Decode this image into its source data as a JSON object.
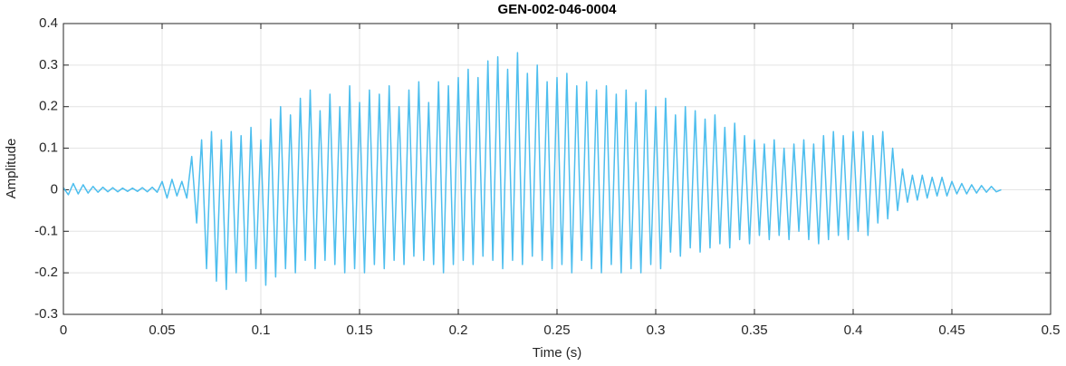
{
  "chart_data": {
    "type": "line",
    "title": "GEN-002-046-0004",
    "x_label": "Time (s)",
    "y_label": "Amplitude",
    "xlim": [
      0,
      0.5
    ],
    "ylim": [
      -0.3,
      0.4
    ],
    "xticks": [
      0,
      0.05,
      0.1,
      0.15,
      0.2,
      0.25,
      0.3,
      0.35,
      0.4,
      0.45,
      0.5
    ],
    "yticks": [
      -0.3,
      -0.2,
      -0.1,
      0,
      0.1,
      0.2,
      0.3,
      0.4
    ],
    "grid": true,
    "color": "#4DBEEE",
    "x": [
      0,
      0.0025,
      0.005,
      0.0075,
      0.01,
      0.0125,
      0.015,
      0.0175,
      0.02,
      0.0225,
      0.025,
      0.0275,
      0.03,
      0.0325,
      0.035,
      0.0375,
      0.04,
      0.0425,
      0.045,
      0.0475,
      0.05,
      0.0525,
      0.055,
      0.0575,
      0.06,
      0.0625,
      0.065,
      0.0675,
      0.07,
      0.0725,
      0.075,
      0.0775,
      0.08,
      0.0825,
      0.085,
      0.0875,
      0.09,
      0.0925,
      0.095,
      0.0975,
      0.1,
      0.1025,
      0.105,
      0.1075,
      0.11,
      0.1125,
      0.115,
      0.1175,
      0.12,
      0.1225,
      0.125,
      0.1275,
      0.13,
      0.1325,
      0.135,
      0.1375,
      0.14,
      0.1425,
      0.145,
      0.1475,
      0.15,
      0.1525,
      0.155,
      0.1575,
      0.16,
      0.1625,
      0.165,
      0.1675,
      0.17,
      0.1725,
      0.175,
      0.1775,
      0.18,
      0.1825,
      0.185,
      0.1875,
      0.19,
      0.1925,
      0.195,
      0.1975,
      0.2,
      0.2025,
      0.205,
      0.2075,
      0.21,
      0.2125,
      0.215,
      0.2175,
      0.22,
      0.2225,
      0.225,
      0.2275,
      0.23,
      0.2325,
      0.235,
      0.2375,
      0.24,
      0.2425,
      0.245,
      0.2475,
      0.25,
      0.2525,
      0.255,
      0.2575,
      0.26,
      0.2625,
      0.265,
      0.2675,
      0.27,
      0.2725,
      0.275,
      0.2775,
      0.28,
      0.2825,
      0.285,
      0.2875,
      0.29,
      0.2925,
      0.295,
      0.2975,
      0.3,
      0.3025,
      0.305,
      0.3075,
      0.31,
      0.3125,
      0.315,
      0.3175,
      0.32,
      0.3225,
      0.325,
      0.3275,
      0.33,
      0.3325,
      0.335,
      0.3375,
      0.34,
      0.3425,
      0.345,
      0.3475,
      0.35,
      0.3525,
      0.355,
      0.3575,
      0.36,
      0.3625,
      0.365,
      0.3675,
      0.37,
      0.3725,
      0.375,
      0.3775,
      0.38,
      0.3825,
      0.385,
      0.3875,
      0.39,
      0.3925,
      0.395,
      0.3975,
      0.4,
      0.4025,
      0.405,
      0.4075,
      0.41,
      0.4125,
      0.415,
      0.4175,
      0.42,
      0.4225,
      0.425,
      0.4275,
      0.43,
      0.4325,
      0.435,
      0.4375,
      0.44,
      0.4425,
      0.445,
      0.4475,
      0.45,
      0.4525,
      0.455,
      0.4575,
      0.46,
      0.4625,
      0.465,
      0.4675,
      0.47,
      0.4725,
      0.475
    ],
    "values": [
      0.005,
      -0.012,
      0.015,
      -0.01,
      0.012,
      -0.008,
      0.008,
      -0.006,
      0.006,
      -0.005,
      0.005,
      -0.005,
      0.004,
      -0.004,
      0.004,
      -0.004,
      0.005,
      -0.005,
      0.006,
      -0.006,
      0.02,
      -0.02,
      0.025,
      -0.015,
      0.02,
      -0.02,
      0.08,
      -0.08,
      0.12,
      -0.19,
      0.14,
      -0.22,
      0.12,
      -0.24,
      0.14,
      -0.2,
      0.13,
      -0.22,
      0.15,
      -0.19,
      0.12,
      -0.23,
      0.17,
      -0.21,
      0.2,
      -0.19,
      0.18,
      -0.2,
      0.22,
      -0.17,
      0.24,
      -0.19,
      0.19,
      -0.17,
      0.23,
      -0.18,
      0.2,
      -0.2,
      0.25,
      -0.19,
      0.21,
      -0.2,
      0.24,
      -0.18,
      0.23,
      -0.19,
      0.25,
      -0.17,
      0.2,
      -0.18,
      0.24,
      -0.16,
      0.26,
      -0.17,
      0.21,
      -0.18,
      0.26,
      -0.2,
      0.25,
      -0.18,
      0.27,
      -0.17,
      0.29,
      -0.18,
      0.27,
      -0.16,
      0.31,
      -0.17,
      0.32,
      -0.19,
      0.29,
      -0.17,
      0.33,
      -0.18,
      0.28,
      -0.16,
      0.3,
      -0.17,
      0.26,
      -0.19,
      0.27,
      -0.18,
      0.28,
      -0.2,
      0.25,
      -0.17,
      0.26,
      -0.19,
      0.24,
      -0.2,
      0.25,
      -0.18,
      0.23,
      -0.2,
      0.24,
      -0.19,
      0.21,
      -0.2,
      0.24,
      -0.18,
      0.2,
      -0.19,
      0.22,
      -0.15,
      0.18,
      -0.16,
      0.2,
      -0.14,
      0.19,
      -0.15,
      0.17,
      -0.14,
      0.18,
      -0.13,
      0.15,
      -0.14,
      0.16,
      -0.12,
      0.13,
      -0.13,
      0.12,
      -0.11,
      0.11,
      -0.12,
      0.12,
      -0.11,
      0.1,
      -0.12,
      0.11,
      -0.1,
      0.12,
      -0.12,
      0.11,
      -0.13,
      0.13,
      -0.12,
      0.14,
      -0.11,
      0.13,
      -0.12,
      0.14,
      -0.1,
      0.14,
      -0.11,
      0.13,
      -0.08,
      0.14,
      -0.07,
      0.1,
      -0.05,
      0.05,
      -0.03,
      0.035,
      -0.025,
      0.035,
      -0.02,
      0.03,
      -0.015,
      0.03,
      -0.015,
      0.02,
      -0.01,
      0.015,
      -0.01,
      0.012,
      -0.008,
      0.01,
      -0.006,
      0.008,
      -0.005,
      0
    ]
  }
}
